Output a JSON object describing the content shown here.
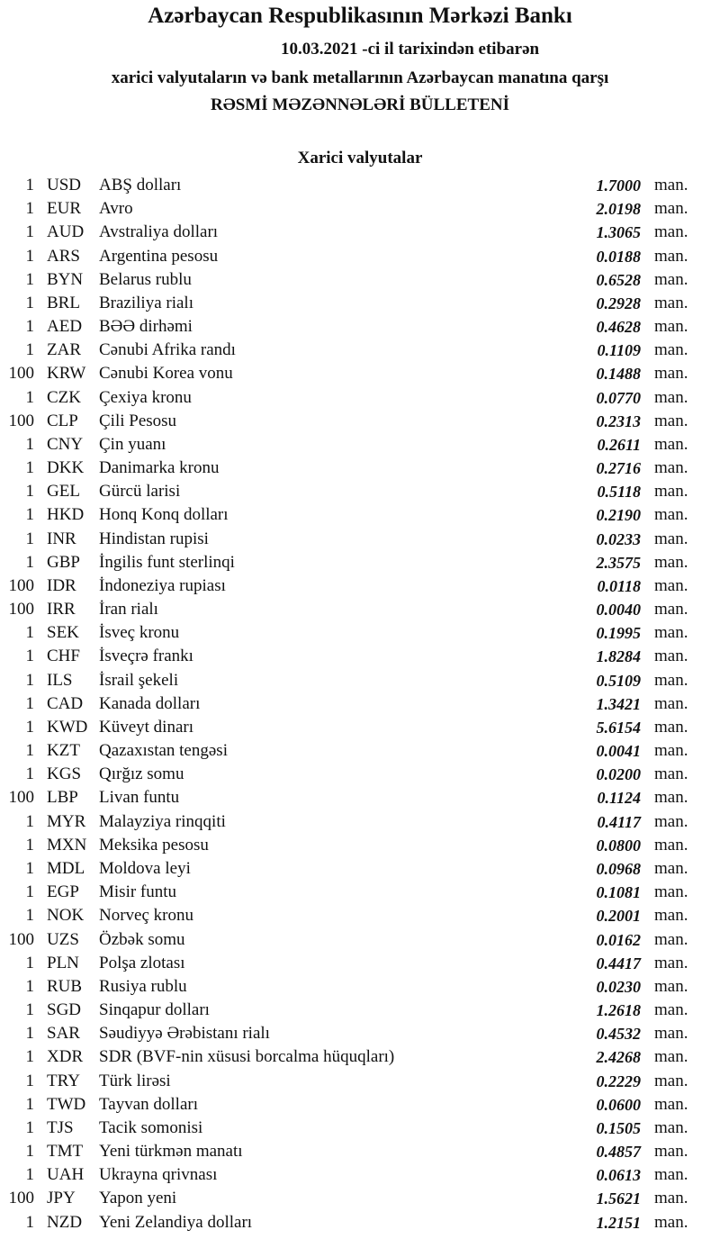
{
  "header": {
    "title": "Azərbaycan Respublikasının Mərkəzi Bankı",
    "date_line": "10.03.2021 -ci il tarixindən etibarən",
    "subtitle": "xarici valyutaların və bank metallarının Azərbaycan manatına qarşı",
    "bulletin": "RƏSMİ MƏZƏNNƏLƏRİ BÜLLETENİ"
  },
  "section_title": "Xarici valyutalar",
  "unit": "man.",
  "rates": [
    {
      "amount": "1",
      "code": "USD",
      "name": "ABŞ dolları",
      "rate": "1.7000"
    },
    {
      "amount": "1",
      "code": "EUR",
      "name": "Avro",
      "rate": "2.0198"
    },
    {
      "amount": "1",
      "code": "AUD",
      "name": "Avstraliya dolları",
      "rate": "1.3065"
    },
    {
      "amount": "1",
      "code": "ARS",
      "name": "Argentina pesosu",
      "rate": "0.0188"
    },
    {
      "amount": "1",
      "code": "BYN",
      "name": "Belarus rublu",
      "rate": "0.6528"
    },
    {
      "amount": "1",
      "code": "BRL",
      "name": "Braziliya rialı",
      "rate": "0.2928"
    },
    {
      "amount": "1",
      "code": "AED",
      "name": "BƏƏ dirhəmi",
      "rate": "0.4628"
    },
    {
      "amount": "1",
      "code": "ZAR",
      "name": "Cənubi Afrika randı",
      "rate": "0.1109"
    },
    {
      "amount": "100",
      "code": "KRW",
      "name": "Cənubi Korea vonu",
      "rate": "0.1488"
    },
    {
      "amount": "1",
      "code": "CZK",
      "name": "Çexiya kronu",
      "rate": "0.0770"
    },
    {
      "amount": "100",
      "code": "CLP",
      "name": "Çili Pesosu",
      "rate": "0.2313"
    },
    {
      "amount": "1",
      "code": "CNY",
      "name": "Çin yuanı",
      "rate": "0.2611"
    },
    {
      "amount": "1",
      "code": "DKK",
      "name": "Danimarka kronu",
      "rate": "0.2716"
    },
    {
      "amount": "1",
      "code": "GEL",
      "name": "Gürcü larisi",
      "rate": "0.5118"
    },
    {
      "amount": "1",
      "code": "HKD",
      "name": "Honq Konq dolları",
      "rate": "0.2190"
    },
    {
      "amount": "1",
      "code": "INR",
      "name": "Hindistan rupisi",
      "rate": "0.0233"
    },
    {
      "amount": "1",
      "code": "GBP",
      "name": "İngilis funt sterlinqi",
      "rate": "2.3575"
    },
    {
      "amount": "100",
      "code": "IDR",
      "name": "İndoneziya rupiası",
      "rate": "0.0118"
    },
    {
      "amount": "100",
      "code": "IRR",
      "name": "İran rialı",
      "rate": "0.0040"
    },
    {
      "amount": "1",
      "code": "SEK",
      "name": "İsveç kronu",
      "rate": "0.1995"
    },
    {
      "amount": "1",
      "code": "CHF",
      "name": "İsveçrə frankı",
      "rate": "1.8284"
    },
    {
      "amount": "1",
      "code": "ILS",
      "name": "İsrail şekeli",
      "rate": "0.5109"
    },
    {
      "amount": "1",
      "code": "CAD",
      "name": "Kanada dolları",
      "rate": "1.3421"
    },
    {
      "amount": "1",
      "code": "KWD",
      "name": "Küveyt dinarı",
      "rate": "5.6154"
    },
    {
      "amount": "1",
      "code": "KZT",
      "name": "Qazaxıstan tengəsi",
      "rate": "0.0041"
    },
    {
      "amount": "1",
      "code": "KGS",
      "name": "Qırğız somu",
      "rate": "0.0200"
    },
    {
      "amount": "100",
      "code": "LBP",
      "name": "Livan funtu",
      "rate": "0.1124"
    },
    {
      "amount": "1",
      "code": "MYR",
      "name": "Malayziya rinqqiti",
      "rate": "0.4117"
    },
    {
      "amount": "1",
      "code": "MXN",
      "name": "Meksika pesosu",
      "rate": "0.0800"
    },
    {
      "amount": "1",
      "code": "MDL",
      "name": "Moldova leyi",
      "rate": "0.0968"
    },
    {
      "amount": "1",
      "code": "EGP",
      "name": "Misir funtu",
      "rate": "0.1081"
    },
    {
      "amount": "1",
      "code": "NOK",
      "name": "Norveç kronu",
      "rate": "0.2001"
    },
    {
      "amount": "100",
      "code": "UZS",
      "name": "Özbək somu",
      "rate": "0.0162"
    },
    {
      "amount": "1",
      "code": "PLN",
      "name": "Polşa zlotası",
      "rate": "0.4417"
    },
    {
      "amount": "1",
      "code": "RUB",
      "name": "Rusiya rublu",
      "rate": "0.0230"
    },
    {
      "amount": "1",
      "code": "SGD",
      "name": "Sinqapur dolları",
      "rate": "1.2618"
    },
    {
      "amount": "1",
      "code": "SAR",
      "name": "Səudiyyə Ərəbistanı rialı",
      "rate": "0.4532"
    },
    {
      "amount": "1",
      "code": "XDR",
      "name": "SDR (BVF-nin xüsusi borcalma hüquqları)",
      "rate": "2.4268"
    },
    {
      "amount": "1",
      "code": "TRY",
      "name": "Türk lirəsi",
      "rate": "0.2229"
    },
    {
      "amount": "1",
      "code": "TWD",
      "name": "Tayvan dolları",
      "rate": "0.0600"
    },
    {
      "amount": "1",
      "code": "TJS",
      "name": "Tacik somonisi",
      "rate": "0.1505"
    },
    {
      "amount": "1",
      "code": "TMT",
      "name": "Yeni türkmən manatı",
      "rate": "0.4857"
    },
    {
      "amount": "1",
      "code": "UAH",
      "name": "Ukrayna qrivnası",
      "rate": "0.0613"
    },
    {
      "amount": "100",
      "code": "JPY",
      "name": "Yapon yeni",
      "rate": "1.5621"
    },
    {
      "amount": "1",
      "code": "NZD",
      "name": "Yeni Zelandiya dolları",
      "rate": "1.2151"
    }
  ]
}
